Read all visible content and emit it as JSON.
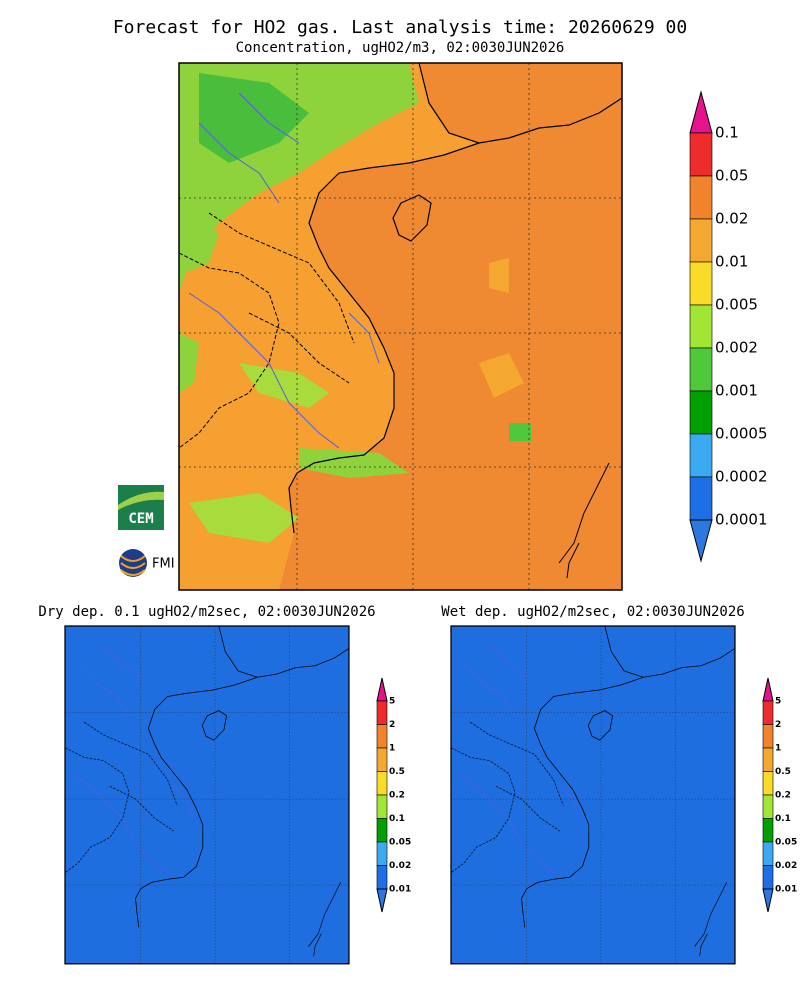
{
  "header": {
    "title": "Forecast for HO2 gas. Last analysis time: 20260629 00",
    "subtitle": "Concentration, ugHO2/m3, 02:0030JUN2026"
  },
  "main_panel": {
    "colorbar": {
      "labels": [
        "0.1",
        "0.05",
        "0.02",
        "0.01",
        "0.005",
        "0.002",
        "0.001",
        "0.0005",
        "0.0002",
        "0.0001"
      ]
    }
  },
  "dry_panel": {
    "title": "Dry dep. 0.1 ugHO2/m2sec, 02:0030JUN2026",
    "colorbar": {
      "labels": [
        "5",
        "2",
        "1",
        "0.5",
        "0.2",
        "0.1",
        "0.05",
        "0.02",
        "0.01"
      ]
    }
  },
  "wet_panel": {
    "title": "Wet dep. ugHO2/m2sec, 02:0030JUN2026",
    "colorbar": {
      "labels": [
        "5",
        "2",
        "1",
        "0.5",
        "0.2",
        "0.1",
        "0.05",
        "0.02",
        "0.01"
      ]
    }
  },
  "logos": {
    "cem": "CEM",
    "fmi": "FMI"
  }
}
